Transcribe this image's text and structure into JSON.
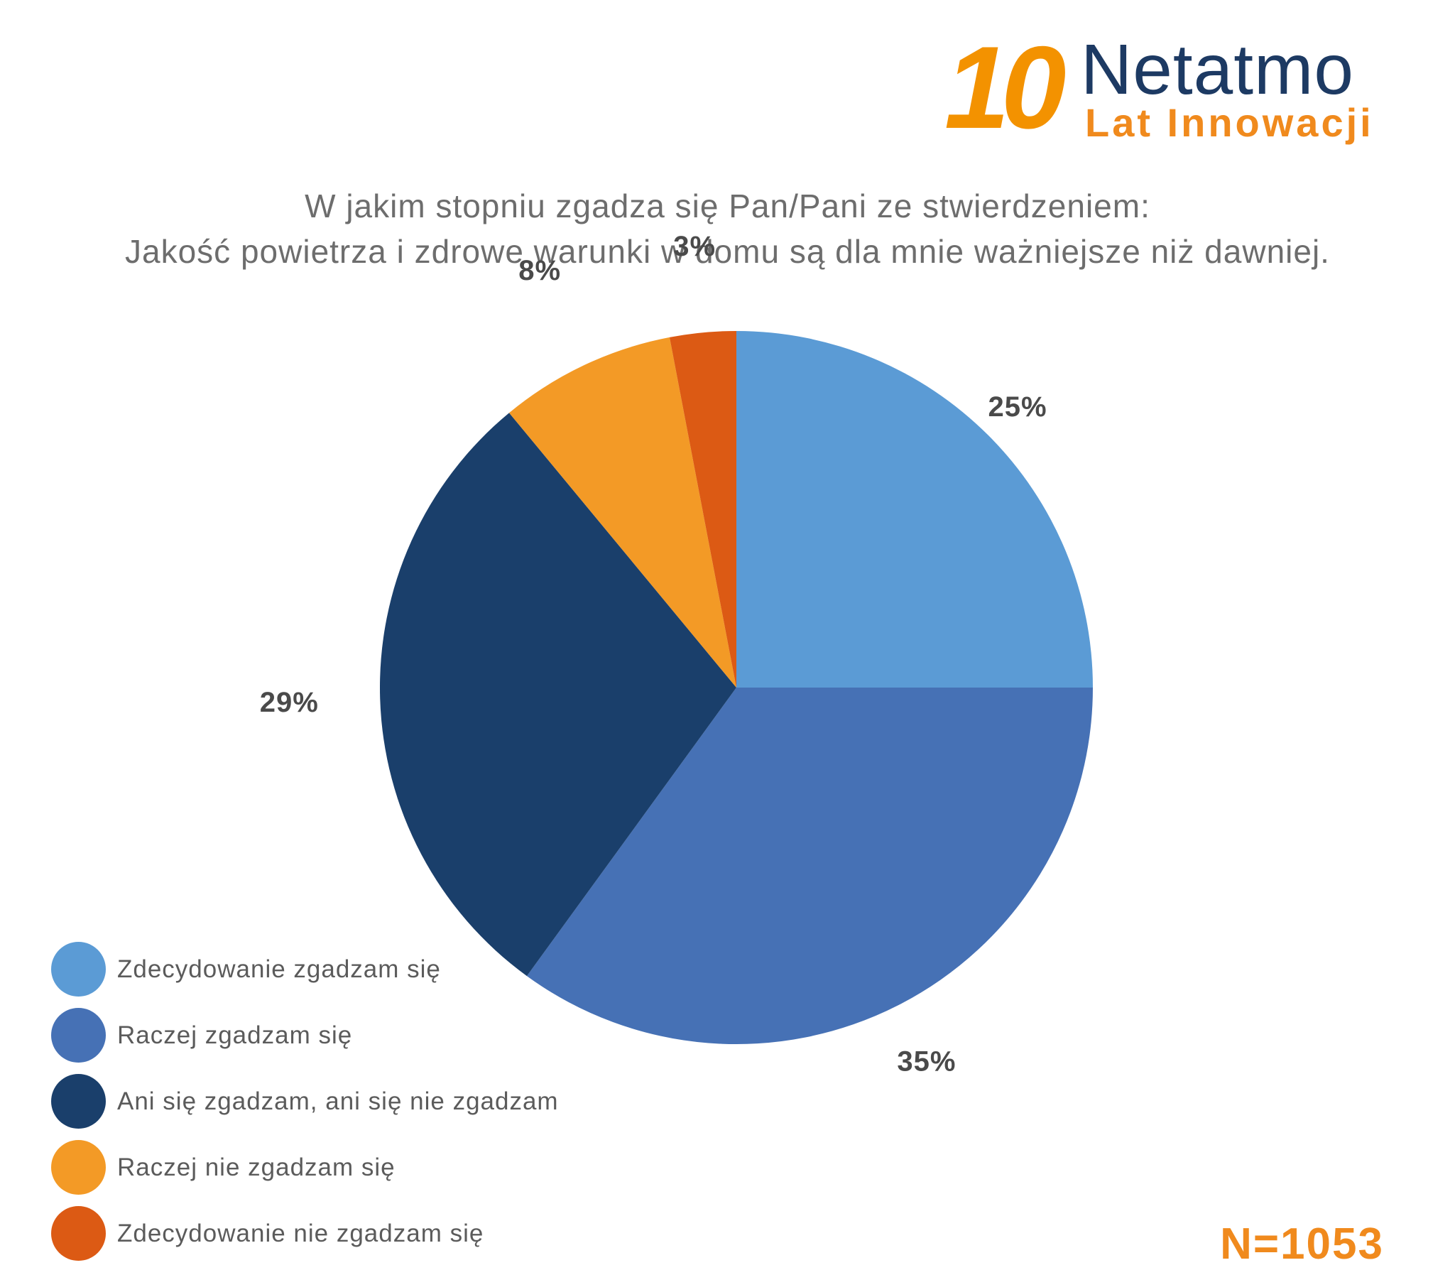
{
  "logo": {
    "number": "10",
    "brand": "Netatmo",
    "tagline": "Lat Innowacji",
    "colors": {
      "number": "#f39200",
      "brand": "#1d3a63",
      "tagline": "#f08a1d"
    }
  },
  "chart_data": {
    "type": "pie",
    "title_lines": [
      "W jakim stopniu zgadza się Pan/Pani ze stwierdzeniem:",
      "Jakość powietrza i zdrowe warunki w domu są dla mnie ważniejsze niż dawniej."
    ],
    "slices": [
      {
        "name": "Zdecydowanie zgadzam się",
        "value": 25,
        "label": "25%",
        "color": "#5b9bd5"
      },
      {
        "name": "Raczej zgadzam się",
        "value": 35,
        "label": "35%",
        "color": "#4671b5"
      },
      {
        "name": "Ani się zgadzam, ani się nie zgadzam",
        "value": 29,
        "label": "29%",
        "color": "#1a3f6b"
      },
      {
        "name": "Raczej nie zgadzam się",
        "value": 8,
        "label": "8%",
        "color": "#f39a26"
      },
      {
        "name": "Zdecydowanie nie zgadzam się",
        "value": 3,
        "label": "3%",
        "color": "#dc5a14"
      }
    ],
    "start": "12 o'clock, clockwise",
    "legend_position": "bottom-left",
    "sample_size": "N=1053"
  }
}
